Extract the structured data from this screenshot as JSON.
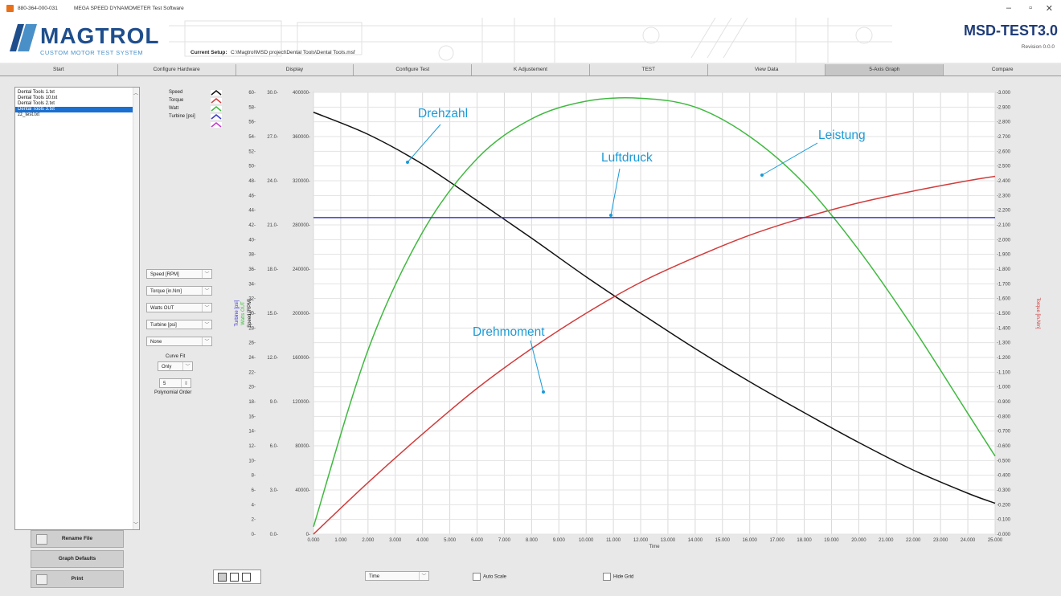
{
  "window": {
    "serial": "880-364-000-031",
    "title": "MEGA SPEED DYNAMOMETER Test Software",
    "controls": [
      "–",
      "▫",
      "✕"
    ]
  },
  "banner": {
    "logo_name": "MAGTROL",
    "logo_sub": "CUSTOM MOTOR TEST SYSTEM",
    "setup_label": "Current Setup:",
    "setup_path": "C:\\Magtrol\\MSD project\\Dental Tools\\Dental Tools.msf",
    "brand": "MSD-TEST3.0",
    "revision": "Revision 0.0.0"
  },
  "tabs": [
    {
      "label": "Start"
    },
    {
      "label": "Configure Hardware"
    },
    {
      "label": "Display"
    },
    {
      "label": "Configure Test"
    },
    {
      "label": "K Adjustement"
    },
    {
      "label": "TEST"
    },
    {
      "label": "View Data"
    },
    {
      "label": "5-Axis Graph",
      "active": true
    },
    {
      "label": "Compare"
    }
  ],
  "files": [
    {
      "name": "Dental Tools 1.txt"
    },
    {
      "name": "Dental Tools 10.txt"
    },
    {
      "name": "Dental Tools 2.txt"
    },
    {
      "name": "Dental Tools 3.txt",
      "selected": true
    },
    {
      "name": "zz_test.txt"
    }
  ],
  "buttons": {
    "rename": "Rename File",
    "graph_defaults": "Graph Defaults",
    "print": "Print"
  },
  "legend": [
    {
      "label": "Speed",
      "color": "#111111"
    },
    {
      "label": "Torque",
      "color": "#d23b3b"
    },
    {
      "label": "Watt",
      "color": "#3fb93f"
    },
    {
      "label": "Turbine [psi]",
      "color": "#3a3ad0"
    },
    {
      "label": "",
      "color": "#c43ad0"
    }
  ],
  "axis_selectors": [
    "Speed [RPM]",
    "Torque [in.Nm]",
    "Watts OUT",
    "Turbine [psi]",
    "None"
  ],
  "curve_fit": {
    "label": "Curve Fit",
    "value": "Only",
    "order_value": "5",
    "order_label": "Polynomial Order"
  },
  "bottom": {
    "x_selector": "Time",
    "auto_scale": "Auto Scale",
    "hide_grid": "Hide Grid"
  },
  "annotations": {
    "speed": "Drehzahl",
    "pressure": "Luftdruck",
    "power": "Leistung",
    "torque": "Drehmoment"
  },
  "chart_data": {
    "type": "line",
    "xlabel": "Time",
    "xlim": [
      0,
      25
    ],
    "x_ticks": [
      "0.000",
      "1.000",
      "2.000",
      "3.000",
      "4.000",
      "5.000",
      "6.000",
      "7.000",
      "8.000",
      "9.000",
      "10.000",
      "11.000",
      "12.000",
      "13.000",
      "14.000",
      "15.000",
      "16.000",
      "17.000",
      "18.000",
      "19.000",
      "20.000",
      "21.000",
      "22.000",
      "23.000",
      "24.000",
      "25.000"
    ],
    "axes": [
      {
        "id": "turbine",
        "label": "Turbine [psi]",
        "color": "#3a3ad0",
        "ylim": [
          0,
          60
        ],
        "ticks": [
          "0-",
          "2-",
          "4-",
          "6-",
          "8-",
          "10-",
          "12-",
          "14-",
          "16-",
          "18-",
          "20-",
          "22-",
          "24-",
          "26-",
          "28-",
          "30-",
          "32-",
          "34-",
          "36-",
          "38-",
          "40-",
          "42-",
          "44-",
          "46-",
          "48-",
          "50-",
          "52-",
          "54-",
          "56-",
          "58-",
          "60-"
        ]
      },
      {
        "id": "watts",
        "label": "Watts OUT",
        "color": "#3fb93f",
        "ylim": [
          0,
          30
        ],
        "ticks": [
          "0.0-",
          "3.0-",
          "6.0-",
          "9.0-",
          "12.0-",
          "15.0-",
          "18.0-",
          "21.0-",
          "24.0-",
          "27.0-",
          "30.0-"
        ]
      },
      {
        "id": "speed",
        "label": "Speed [RPM]",
        "color": "#111111",
        "ylim": [
          0,
          400000
        ],
        "ticks": [
          "0-",
          "40000-",
          "80000-",
          "120000-",
          "160000-",
          "200000-",
          "240000-",
          "280000-",
          "320000-",
          "360000-",
          "400000-"
        ]
      },
      {
        "id": "torque",
        "label": "Torque [in.Nm]",
        "color": "#d23b3b",
        "ylim": [
          0,
          3
        ],
        "ticks": [
          "-0.000",
          "-0.100",
          "-0.200",
          "-0.300",
          "-0.400",
          "-0.500",
          "-0.600",
          "-0.700",
          "-0.800",
          "-0.900",
          "-1.000",
          "-1.100",
          "-1.200",
          "-1.300",
          "-1.400",
          "-1.500",
          "-1.600",
          "-1.700",
          "-1.800",
          "-1.900",
          "-2.000",
          "-2.100",
          "-2.200",
          "-2.300",
          "-2.400",
          "-2.500",
          "-2.600",
          "-2.700",
          "-2.800",
          "-2.900",
          "-3.000"
        ]
      }
    ],
    "series": [
      {
        "name": "Speed",
        "axis": "speed",
        "color": "#111111",
        "x": [
          0,
          2,
          4,
          6,
          8,
          10,
          12,
          14,
          16,
          18,
          20,
          22,
          24,
          25
        ],
        "y": [
          382000,
          362000,
          335000,
          302000,
          268000,
          233000,
          200000,
          168000,
          138000,
          110000,
          83000,
          58000,
          37000,
          28000
        ]
      },
      {
        "name": "Torque",
        "axis": "torque",
        "color": "#d23b3b",
        "x": [
          0,
          2,
          4,
          6,
          8,
          10,
          12,
          14,
          16,
          18,
          20,
          22,
          24,
          25
        ],
        "y": [
          0.0,
          0.35,
          0.68,
          0.99,
          1.26,
          1.5,
          1.71,
          1.88,
          2.03,
          2.15,
          2.25,
          2.33,
          2.4,
          2.43
        ]
      },
      {
        "name": "Watt",
        "axis": "watts",
        "color": "#3fb93f",
        "x": [
          0,
          2,
          4,
          6,
          8,
          10,
          12,
          14,
          16,
          18,
          20,
          22,
          24,
          25
        ],
        "y": [
          0.5,
          12.5,
          20.5,
          25.5,
          28.2,
          29.4,
          29.6,
          29.0,
          27.0,
          23.8,
          19.3,
          14.0,
          8.2,
          5.3
        ]
      },
      {
        "name": "Turbine [psi]",
        "axis": "turbine",
        "color": "#3a3ad0",
        "x": [
          0,
          25
        ],
        "y": [
          43,
          43
        ]
      }
    ],
    "grid": true
  }
}
